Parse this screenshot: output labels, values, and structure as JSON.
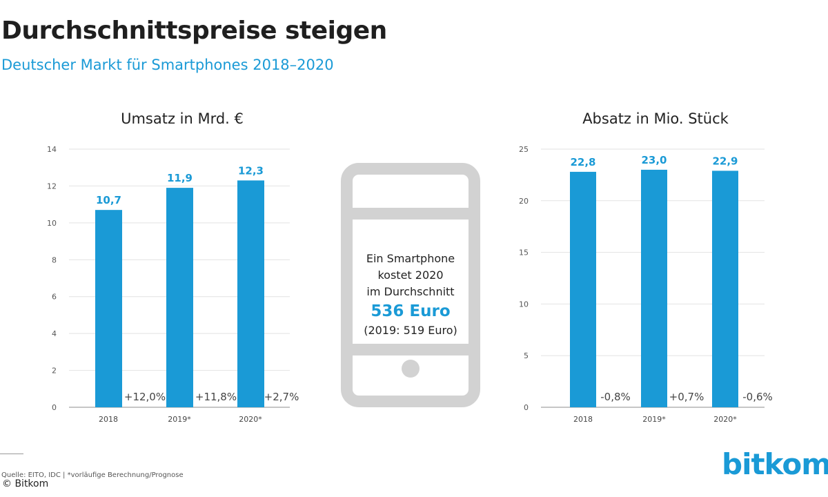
{
  "header": {
    "title": "Durchschnittspreise steigen",
    "subtitle": "Deutscher Markt für Smartphones 2018–2020"
  },
  "colors": {
    "bar": "#1a9ad6",
    "accent": "#1a9ad6",
    "phone": "#d2d2d2"
  },
  "phone": {
    "line1": "Ein Smartphone",
    "line2": "kostet 2020",
    "line3": "im Durchschnitt",
    "price": "536 Euro",
    "previous": "(2019: 519 Euro)"
  },
  "footer": {
    "source": "Quelle: EITO, IDC | *vorläufige Berechnung/Prognose",
    "copyright": "© Bitkom",
    "brand": "bitkom"
  },
  "chart_data": [
    {
      "type": "bar",
      "title": "Umsatz in Mrd. €",
      "categories": [
        "2018",
        "2019*",
        "2020*"
      ],
      "values": [
        10.7,
        11.9,
        12.3
      ],
      "value_labels": [
        "10,7",
        "11,9",
        "12,3"
      ],
      "change_labels": [
        "+12,0%",
        "+11,8%",
        "+2,7%"
      ],
      "ylim": [
        0,
        14
      ],
      "yticks": [
        0,
        2,
        4,
        6,
        8,
        10,
        12,
        14
      ],
      "ytick_labels": [
        "0",
        "2",
        "4",
        "6",
        "8",
        "10",
        "12",
        "14"
      ],
      "grid": true
    },
    {
      "type": "bar",
      "title": "Absatz in Mio. Stück",
      "categories": [
        "2018",
        "2019*",
        "2020*"
      ],
      "values": [
        22.8,
        23.0,
        22.9
      ],
      "value_labels": [
        "22,8",
        "23,0",
        "22,9"
      ],
      "change_labels": [
        "-0,8%",
        "+0,7%",
        "-0,6%"
      ],
      "ylim": [
        0,
        25
      ],
      "yticks": [
        0,
        5,
        10,
        15,
        20,
        25
      ],
      "ytick_labels": [
        "0",
        "5",
        "10",
        "15",
        "20",
        "25"
      ],
      "grid": true
    }
  ]
}
